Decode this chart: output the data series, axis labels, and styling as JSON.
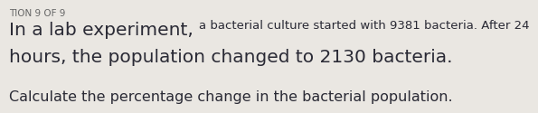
{
  "header": "TION 9 OF 9",
  "large_text_1": "In a lab experiment, ",
  "small_text_1": "a bacterial culture started with 9381 bacteria. After 24",
  "large_text_2": "hours, the population changed to 2130 bacteria.",
  "small_text_3": "Calculate the percentage change in the bacterial population.",
  "bg_color": "#eae7e2",
  "text_color": "#2a2a35",
  "header_color": "#666666",
  "large_fontsize": 14.5,
  "small_inline_fontsize": 9.5,
  "line3_fontsize": 11.5,
  "header_fontsize": 7.5
}
